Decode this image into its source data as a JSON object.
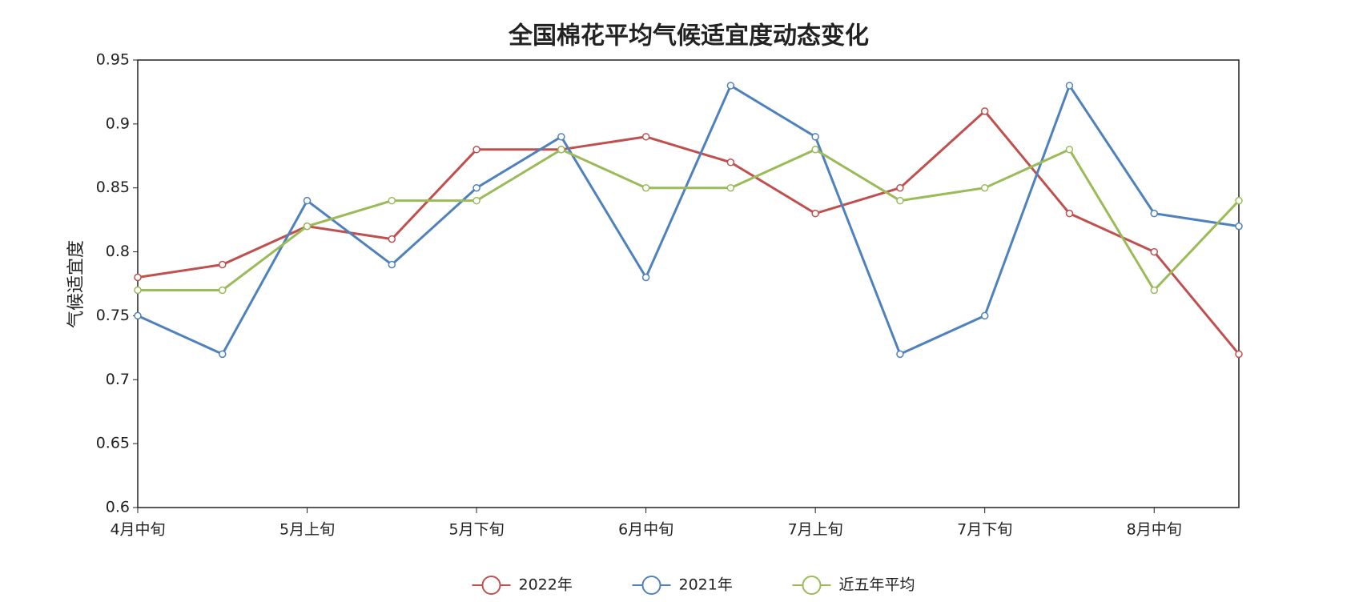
{
  "chart_data": {
    "type": "line",
    "title": "全国棉花平均气候适宜度动态变化",
    "y_label": "气候适宜度",
    "categories": [
      "4月中旬",
      null,
      "5月上旬",
      null,
      "5月下旬",
      null,
      "6月中旬",
      null,
      "7月上旬",
      null,
      "7月下旬",
      null,
      "8月中旬",
      null
    ],
    "series": [
      {
        "name": "2022年",
        "color": "#c0504d",
        "values": [
          0.78,
          0.79,
          0.82,
          0.81,
          0.88,
          0.88,
          0.89,
          0.87,
          0.83,
          0.85,
          0.91,
          0.83,
          0.8,
          0.72
        ]
      },
      {
        "name": "2021年",
        "color": "#4f81bd",
        "values": [
          0.75,
          0.72,
          0.84,
          0.79,
          0.85,
          0.89,
          0.78,
          0.93,
          0.89,
          0.72,
          0.75,
          0.93,
          0.83,
          0.82
        ]
      },
      {
        "name": "近五年平均",
        "color": "#9bbb59",
        "values": [
          0.77,
          0.77,
          0.82,
          0.84,
          0.84,
          0.88,
          0.85,
          0.85,
          0.88,
          0.84,
          0.85,
          0.88,
          0.77,
          0.84
        ]
      }
    ],
    "ylim": [
      0.6,
      0.95
    ],
    "yticks": [
      0.6,
      0.65,
      0.7,
      0.75,
      0.8,
      0.85,
      0.9,
      0.95
    ],
    "grid": false,
    "legend": "bottom"
  }
}
